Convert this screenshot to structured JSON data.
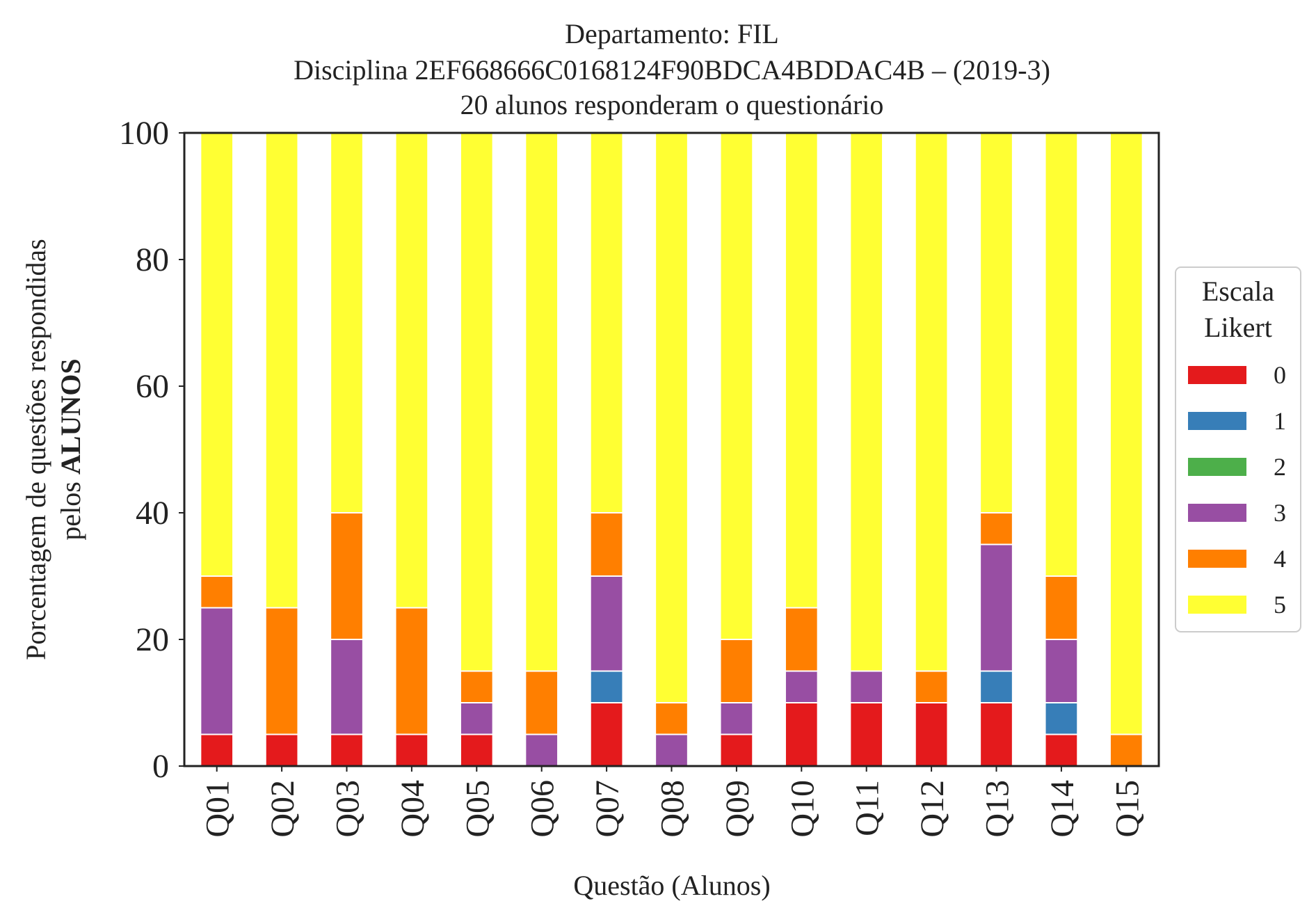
{
  "chart_data": {
    "type": "bar",
    "stacked": true,
    "title_lines": [
      "Departamento: FIL",
      "Disciplina 2EF668666C0168124F90BDCA4BDDAC4B – (2019-3)",
      "20 alunos responderam o questionário"
    ],
    "xlabel": "Questão (Alunos)",
    "ylabel_line1": "Porcentagem de questões respondidas",
    "ylabel_line2_prefix": "pelos ",
    "ylabel_line2_bold": "ALUNOS",
    "ylim": [
      0,
      100
    ],
    "yticks": [
      "0",
      "20",
      "40",
      "60",
      "80",
      "100"
    ],
    "grid": false,
    "legend_placement": "right",
    "legend_title_lines": [
      "Escala",
      "Likert"
    ],
    "categories": [
      "Q01",
      "Q02",
      "Q03",
      "Q04",
      "Q05",
      "Q06",
      "Q07",
      "Q08",
      "Q09",
      "Q10",
      "Q11",
      "Q12",
      "Q13",
      "Q14",
      "Q15"
    ],
    "series": [
      {
        "name": "0",
        "color": "#e41a1c",
        "values": [
          5,
          5,
          5,
          5,
          5,
          0,
          10,
          0,
          5,
          10,
          10,
          10,
          10,
          5,
          0
        ]
      },
      {
        "name": "1",
        "color": "#377eb8",
        "values": [
          0,
          0,
          0,
          0,
          0,
          0,
          5,
          0,
          0,
          0,
          0,
          0,
          5,
          5,
          0
        ]
      },
      {
        "name": "2",
        "color": "#4daf4a",
        "values": [
          0,
          0,
          0,
          0,
          0,
          0,
          0,
          0,
          0,
          0,
          0,
          0,
          0,
          0,
          0
        ]
      },
      {
        "name": "3",
        "color": "#984ea3",
        "values": [
          20,
          0,
          15,
          0,
          5,
          5,
          15,
          5,
          5,
          5,
          5,
          0,
          20,
          10,
          0
        ]
      },
      {
        "name": "4",
        "color": "#ff7f00",
        "values": [
          5,
          20,
          20,
          20,
          5,
          10,
          10,
          5,
          10,
          10,
          0,
          5,
          5,
          10,
          5
        ]
      },
      {
        "name": "5",
        "color": "#ffff33",
        "values": [
          70,
          75,
          60,
          75,
          85,
          85,
          60,
          90,
          80,
          75,
          85,
          85,
          60,
          70,
          95
        ]
      }
    ]
  }
}
